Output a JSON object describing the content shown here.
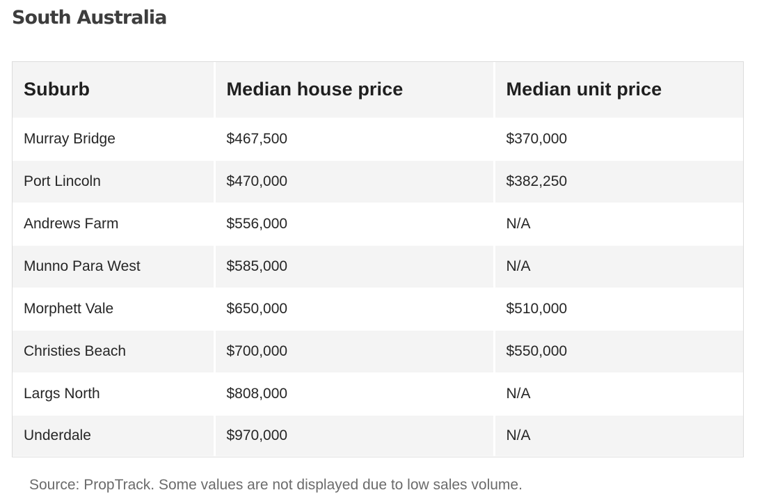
{
  "heading": "South Australia",
  "table": {
    "columns": [
      "Suburb",
      "Median house price",
      "Median unit price"
    ],
    "rows": [
      [
        "Murray Bridge",
        "$467,500",
        "$370,000"
      ],
      [
        "Port Lincoln",
        "$470,000",
        "$382,250"
      ],
      [
        "Andrews Farm",
        "$556,000",
        "N/A"
      ],
      [
        "Munno Para West",
        "$585,000",
        "N/A"
      ],
      [
        "Morphett Vale",
        "$650,000",
        "$510,000"
      ],
      [
        "Christies Beach",
        "$700,000",
        "$550,000"
      ],
      [
        "Largs North",
        "$808,000",
        "N/A"
      ],
      [
        "Underdale",
        "$970,000",
        "N/A"
      ]
    ]
  },
  "source_note": "Source: PropTrack. Some values are not displayed due to low sales volume."
}
